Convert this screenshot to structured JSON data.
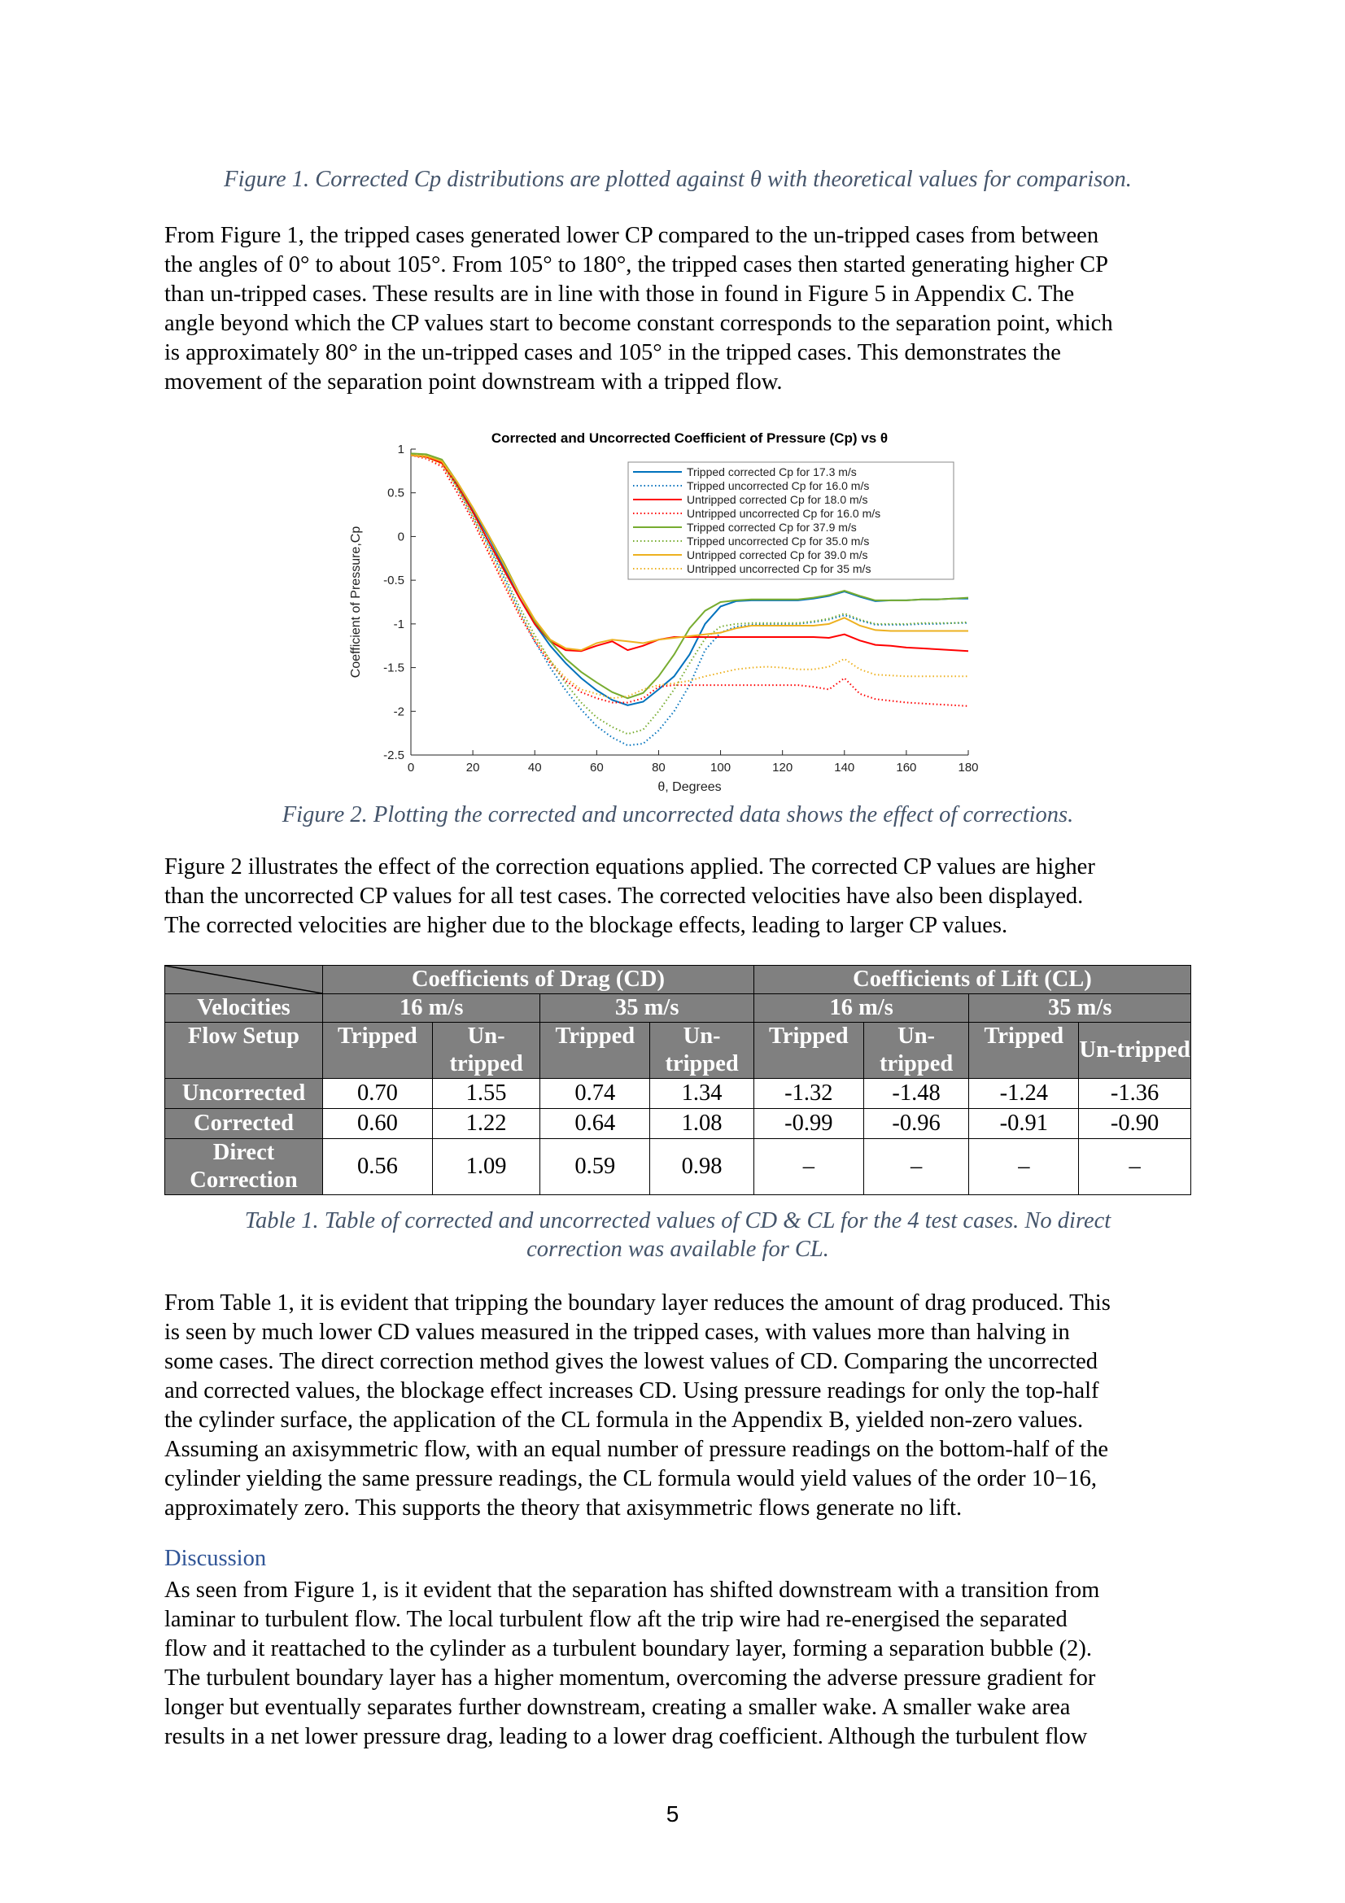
{
  "page": {
    "caption1": "Figure 1. Corrected Cp distributions are plotted against θ with theoretical values for comparison.",
    "para1": [
      "From Figure 1, the tripped cases generated lower CP compared to the un-tripped cases from between",
      "the angles of 0° to about 105°. From 105° to 180°, the tripped cases then started generating higher CP",
      "than un-tripped cases. These results are in line with those in found in Figure 5 in Appendix C. The",
      "angle beyond which the CP values start to become constant corresponds to the separation point, which",
      "is approximately 80° in the un-tripped cases and 105° in the tripped cases. This demonstrates the",
      "movement of the separation point downstream with a tripped flow."
    ],
    "caption2": "Figure 2. Plotting the corrected and uncorrected data shows the effect of corrections.",
    "para2": [
      "Figure 2 illustrates the effect of the correction equations applied. The corrected CP values are higher",
      "than the uncorrected CP values for all test cases. The corrected velocities have also been displayed.",
      "The corrected velocities are higher due to the blockage effects, leading to larger CP values."
    ],
    "caption3": [
      "Table 1. Table of corrected and uncorrected values of CD & CL  for the 4 test cases. No direct",
      "correction was available for CL."
    ],
    "para3": [
      "From Table 1, it is evident that tripping the boundary layer reduces the amount of drag produced. This",
      "is seen by much lower CD values measured in the tripped cases, with values more than halving in",
      "some cases. The direct correction method gives the lowest values of CD. Comparing the uncorrected",
      "and corrected values, the blockage effect increases CD. Using pressure readings for only the top-half",
      "the cylinder surface, the application of the CL formula in the Appendix B, yielded non-zero values.",
      "Assuming an axisymmetric flow, with an equal number of pressure readings on the bottom-half of the",
      "cylinder yielding the same pressure readings, the CL formula would yield values of the order 10−16,",
      "approximately zero. This supports the theory that axisymmetric flows generate no lift."
    ],
    "heading_discussion": "Discussion",
    "para4": [
      "As seen from Figure 1, is it evident that the separation has shifted downstream with a transition from",
      "laminar to turbulent flow. The local turbulent flow aft the trip wire had re-energised the separated",
      "flow and it reattached to the cylinder as a turbulent boundary layer, forming a separation bubble (2).",
      "The turbulent boundary layer has a higher momentum, overcoming the adverse pressure gradient for",
      "longer but eventually separates further downstream, creating a smaller wake. A smaller wake area",
      "results in a net lower pressure drag, leading to a lower drag coefficient. Although the turbulent flow"
    ],
    "page_number": "5"
  },
  "table": {
    "group_drag": "Coefficients of Drag (CD)",
    "group_lift": "Coefficients of Lift (CL)",
    "velocities_label": "Velocities",
    "velocities": [
      "16 m/s",
      "35 m/s",
      "16 m/s",
      "35 m/s"
    ],
    "flow_setup_label": "Flow Setup",
    "flow_setups": [
      "Tripped",
      "Un-tripped",
      "Tripped",
      "Un-tripped",
      "Tripped",
      "Un-tripped",
      "Tripped",
      "Un-tripped"
    ],
    "rows": [
      {
        "label": "Uncorrected",
        "values": [
          "0.70",
          "1.55",
          "0.74",
          "1.34",
          "-1.32",
          "-1.48",
          "-1.24",
          "-1.36"
        ]
      },
      {
        "label": "Corrected",
        "values": [
          "0.60",
          "1.22",
          "0.64",
          "1.08",
          "-0.99",
          "-0.96",
          "-0.91",
          "-0.90"
        ]
      },
      {
        "label": "Direct Correction",
        "values": [
          "0.56",
          "1.09",
          "0.59",
          "0.98",
          "–",
          "–",
          "–",
          "–"
        ]
      }
    ]
  },
  "chart_data": {
    "type": "line",
    "title": "Corrected and Uncorrected Coefficient of Pressure (Cp) vs θ",
    "xlabel": "θ, Degrees",
    "ylabel": "Coefficient of Pressure,Cp",
    "xlim": [
      0,
      180
    ],
    "ylim": [
      -2.5,
      1
    ],
    "xticks": [
      0,
      20,
      40,
      60,
      80,
      100,
      120,
      140,
      160,
      180
    ],
    "yticks": [
      1,
      0.5,
      0,
      -0.5,
      -1,
      -1.5,
      -2,
      -2.5
    ],
    "x": [
      0,
      5,
      10,
      15,
      20,
      25,
      30,
      35,
      40,
      45,
      50,
      55,
      60,
      65,
      70,
      75,
      80,
      85,
      90,
      95,
      100,
      105,
      110,
      115,
      120,
      125,
      130,
      135,
      140,
      145,
      150,
      155,
      160,
      165,
      170,
      175,
      180
    ],
    "series": [
      {
        "name": "Tripped corrected Cp for 17.3 m/s",
        "color": "#0072bd",
        "dash": "solid",
        "values": [
          0.93,
          0.92,
          0.86,
          0.6,
          0.3,
          0.0,
          -0.35,
          -0.7,
          -1.0,
          -1.25,
          -1.45,
          -1.62,
          -1.76,
          -1.87,
          -1.93,
          -1.89,
          -1.75,
          -1.6,
          -1.35,
          -1.0,
          -0.8,
          -0.74,
          -0.73,
          -0.73,
          -0.73,
          -0.73,
          -0.71,
          -0.68,
          -0.63,
          -0.69,
          -0.74,
          -0.73,
          -0.73,
          -0.72,
          -0.72,
          -0.71,
          -0.71
        ]
      },
      {
        "name": "Tripped uncorrected Cp for 16.0 m/s",
        "color": "#0072bd",
        "dash": "dot",
        "values": [
          0.93,
          0.9,
          0.84,
          0.55,
          0.22,
          -0.1,
          -0.47,
          -0.85,
          -1.2,
          -1.5,
          -1.76,
          -1.98,
          -2.17,
          -2.3,
          -2.39,
          -2.37,
          -2.22,
          -2.0,
          -1.7,
          -1.3,
          -1.1,
          -1.03,
          -1.01,
          -1.0,
          -1.0,
          -1.0,
          -0.98,
          -0.95,
          -0.9,
          -0.96,
          -1.01,
          -1.01,
          -1.01,
          -1.0,
          -1.0,
          -0.99,
          -0.99
        ]
      },
      {
        "name": "Untripped corrected Cp for 18.0 m/s",
        "color": "#ff0000",
        "dash": "solid",
        "values": [
          0.93,
          0.91,
          0.84,
          0.58,
          0.28,
          -0.05,
          -0.38,
          -0.7,
          -1.0,
          -1.2,
          -1.3,
          -1.31,
          -1.25,
          -1.2,
          -1.3,
          -1.25,
          -1.18,
          -1.15,
          -1.15,
          -1.15,
          -1.15,
          -1.15,
          -1.15,
          -1.15,
          -1.15,
          -1.15,
          -1.15,
          -1.16,
          -1.12,
          -1.19,
          -1.24,
          -1.25,
          -1.27,
          -1.28,
          -1.29,
          -1.3,
          -1.31
        ]
      },
      {
        "name": "Untripped uncorrected Cp for 16.0 m/s",
        "color": "#ff0000",
        "dash": "dot",
        "values": [
          0.93,
          0.89,
          0.8,
          0.5,
          0.18,
          -0.18,
          -0.55,
          -0.9,
          -1.2,
          -1.45,
          -1.65,
          -1.78,
          -1.85,
          -1.9,
          -1.9,
          -1.85,
          -1.72,
          -1.7,
          -1.7,
          -1.7,
          -1.7,
          -1.7,
          -1.7,
          -1.7,
          -1.7,
          -1.7,
          -1.72,
          -1.75,
          -1.62,
          -1.8,
          -1.86,
          -1.88,
          -1.9,
          -1.91,
          -1.92,
          -1.93,
          -1.94
        ]
      },
      {
        "name": "Tripped corrected Cp for 37.9 m/s",
        "color": "#77ac30",
        "dash": "solid",
        "values": [
          0.95,
          0.94,
          0.88,
          0.62,
          0.33,
          0.02,
          -0.3,
          -0.65,
          -0.97,
          -1.2,
          -1.4,
          -1.55,
          -1.67,
          -1.78,
          -1.85,
          -1.79,
          -1.6,
          -1.35,
          -1.05,
          -0.85,
          -0.75,
          -0.73,
          -0.72,
          -0.72,
          -0.72,
          -0.72,
          -0.7,
          -0.67,
          -0.62,
          -0.68,
          -0.73,
          -0.73,
          -0.73,
          -0.72,
          -0.72,
          -0.71,
          -0.7
        ]
      },
      {
        "name": "Tripped uncorrected Cp for 35.0 m/s",
        "color": "#77ac30",
        "dash": "dot",
        "values": [
          0.95,
          0.93,
          0.86,
          0.57,
          0.25,
          -0.08,
          -0.43,
          -0.8,
          -1.13,
          -1.42,
          -1.68,
          -1.9,
          -2.07,
          -2.18,
          -2.26,
          -2.21,
          -2.0,
          -1.75,
          -1.45,
          -1.17,
          -1.03,
          -1.0,
          -0.99,
          -0.99,
          -0.99,
          -0.99,
          -0.97,
          -0.94,
          -0.88,
          -0.95,
          -1.0,
          -1.0,
          -1.0,
          -0.99,
          -0.99,
          -0.99,
          -0.98
        ]
      },
      {
        "name": "Untripped corrected Cp for 39.0 m/s",
        "color": "#edb120",
        "dash": "solid",
        "values": [
          0.93,
          0.92,
          0.86,
          0.62,
          0.33,
          0.02,
          -0.32,
          -0.65,
          -0.95,
          -1.18,
          -1.28,
          -1.3,
          -1.22,
          -1.18,
          -1.2,
          -1.22,
          -1.18,
          -1.16,
          -1.14,
          -1.12,
          -1.1,
          -1.05,
          -1.02,
          -1.02,
          -1.02,
          -1.02,
          -1.02,
          -1.0,
          -0.93,
          -1.02,
          -1.07,
          -1.08,
          -1.08,
          -1.08,
          -1.08,
          -1.08,
          -1.08
        ]
      },
      {
        "name": "Untripped uncorrected Cp for 35 m/s",
        "color": "#edb120",
        "dash": "dot",
        "values": [
          0.93,
          0.9,
          0.82,
          0.55,
          0.22,
          -0.15,
          -0.52,
          -0.87,
          -1.17,
          -1.42,
          -1.62,
          -1.75,
          -1.8,
          -1.85,
          -1.83,
          -1.75,
          -1.7,
          -1.68,
          -1.65,
          -1.6,
          -1.56,
          -1.52,
          -1.5,
          -1.49,
          -1.5,
          -1.52,
          -1.52,
          -1.49,
          -1.4,
          -1.52,
          -1.58,
          -1.59,
          -1.6,
          -1.6,
          -1.6,
          -1.6,
          -1.6
        ]
      }
    ],
    "legend_position": "top-right",
    "grid": false
  }
}
